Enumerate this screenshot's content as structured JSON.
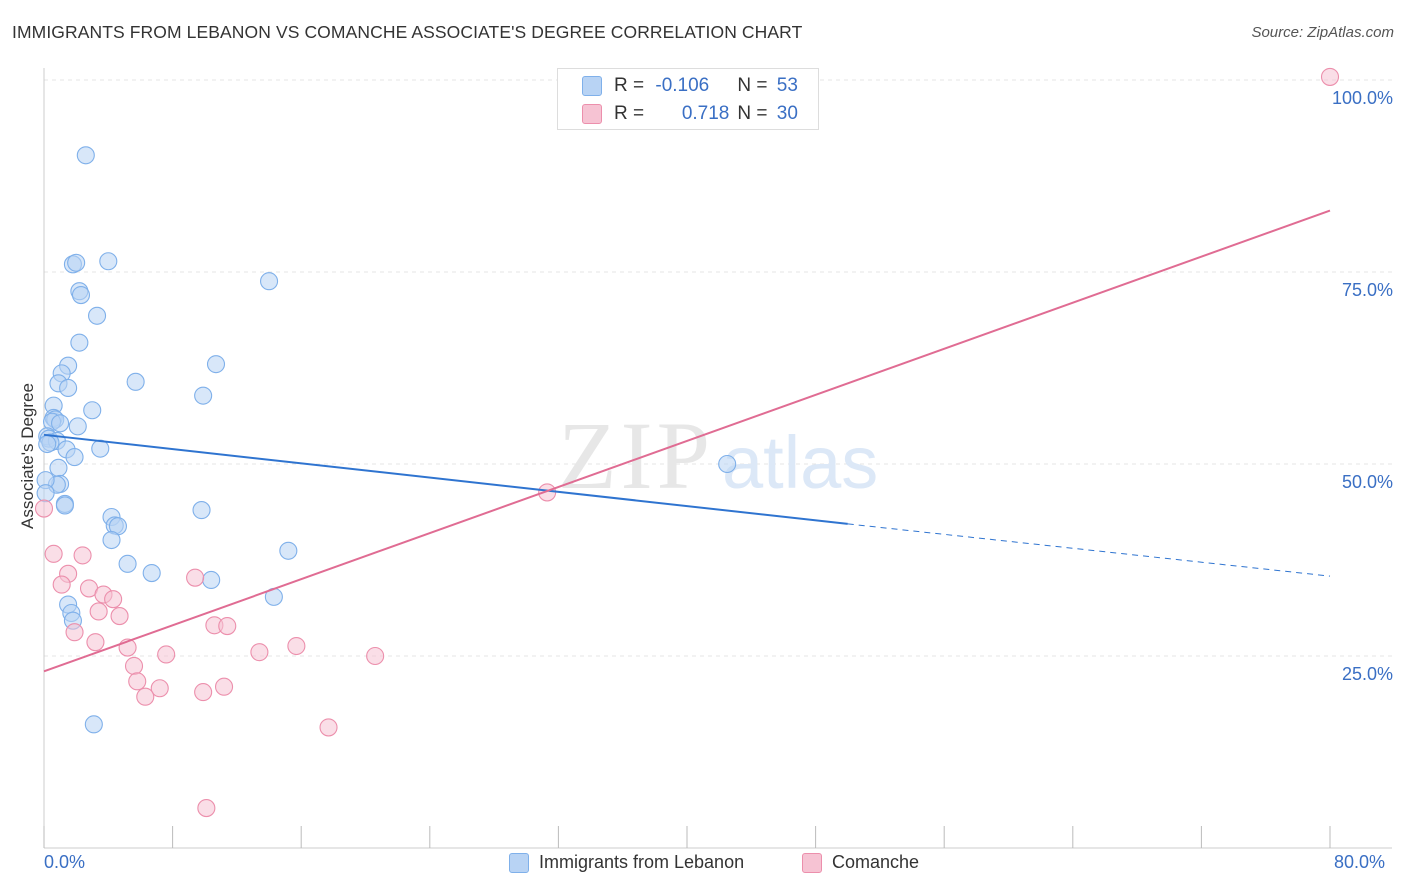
{
  "title": "IMMIGRANTS FROM LEBANON VS COMANCHE ASSOCIATE'S DEGREE CORRELATION CHART",
  "source": "Source: ZipAtlas.com",
  "watermark": {
    "zip": "ZIP",
    "atlas": "atlas"
  },
  "colors": {
    "blue": "#7fb0ea",
    "blue_fill": "#b8d3f4",
    "blue_line": "#2f74d0",
    "pink": "#ec8fac",
    "pink_fill": "#f6c3d3",
    "pink_line": "#e06c93",
    "axis_label": "#3a6fc4",
    "grid": "#e4e4e4"
  },
  "stats": {
    "blue": {
      "r_label": "R = ",
      "r_value": "-0.106",
      "n_label": "N = ",
      "n_value": "53"
    },
    "pink": {
      "r_label": "R = ",
      "r_value": "0.718",
      "n_label": "N = ",
      "n_value": "30"
    }
  },
  "chart_data": {
    "type": "scatter",
    "title": "IMMIGRANTS FROM LEBANON VS COMANCHE ASSOCIATE'S DEGREE CORRELATION CHART",
    "xlabel": "",
    "ylabel": "Associate's Degree",
    "xlim": [
      0,
      80
    ],
    "ylim": [
      0,
      100
    ],
    "x_tick_labels": [
      "0.0%",
      "80.0%"
    ],
    "y_tick_labels": [
      "25.0%",
      "50.0%",
      "75.0%",
      "100.0%"
    ],
    "y_ticks": [
      25,
      50,
      75,
      100
    ],
    "grid": "horizontal dashed",
    "legend_position": "bottom",
    "series": [
      {
        "name": "Immigrants from Lebanon",
        "color": "blue",
        "trend": {
          "x0": 0,
          "y0": 53.8,
          "x1": 50,
          "y1": 42.2,
          "dash_to_x": 80,
          "dash_to_y": 35.4
        },
        "points": [
          [
            2.6,
            90.2
          ],
          [
            1.8,
            76.0
          ],
          [
            2.0,
            76.2
          ],
          [
            4.0,
            76.4
          ],
          [
            14.0,
            73.8
          ],
          [
            2.2,
            72.5
          ],
          [
            2.3,
            72.0
          ],
          [
            3.3,
            69.3
          ],
          [
            2.2,
            65.8
          ],
          [
            10.7,
            63.0
          ],
          [
            1.5,
            62.8
          ],
          [
            1.1,
            61.8
          ],
          [
            0.9,
            60.5
          ],
          [
            5.7,
            60.7
          ],
          [
            1.5,
            59.9
          ],
          [
            9.9,
            58.9
          ],
          [
            0.6,
            57.6
          ],
          [
            3.0,
            57.0
          ],
          [
            0.6,
            56.0
          ],
          [
            0.7,
            55.8
          ],
          [
            0.5,
            55.5
          ],
          [
            1.0,
            55.3
          ],
          [
            2.1,
            54.9
          ],
          [
            0.2,
            53.6
          ],
          [
            0.3,
            53.3
          ],
          [
            0.8,
            53.0
          ],
          [
            0.4,
            52.8
          ],
          [
            0.2,
            52.6
          ],
          [
            3.5,
            52.0
          ],
          [
            1.4,
            51.9
          ],
          [
            1.9,
            50.9
          ],
          [
            0.9,
            49.5
          ],
          [
            42.5,
            50.0
          ],
          [
            1.0,
            47.4
          ],
          [
            0.8,
            47.3
          ],
          [
            1.3,
            44.8
          ],
          [
            1.3,
            44.6
          ],
          [
            9.8,
            44.0
          ],
          [
            4.2,
            43.1
          ],
          [
            4.4,
            42.0
          ],
          [
            4.6,
            41.9
          ],
          [
            4.2,
            40.1
          ],
          [
            15.2,
            38.7
          ],
          [
            5.2,
            37.0
          ],
          [
            6.7,
            35.8
          ],
          [
            10.4,
            34.9
          ],
          [
            14.3,
            32.7
          ],
          [
            1.5,
            31.7
          ],
          [
            1.7,
            30.6
          ],
          [
            1.8,
            29.6
          ],
          [
            3.1,
            16.1
          ],
          [
            0.1,
            47.9
          ],
          [
            0.1,
            46.2
          ]
        ]
      },
      {
        "name": "Comanche",
        "color": "pink",
        "trend": {
          "x0": 0,
          "y0": 23.0,
          "x1": 80,
          "y1": 83.0
        },
        "points": [
          [
            80.0,
            100.4
          ],
          [
            31.3,
            46.3
          ],
          [
            0.0,
            44.2
          ],
          [
            0.6,
            38.3
          ],
          [
            2.4,
            38.1
          ],
          [
            1.5,
            35.7
          ],
          [
            9.4,
            35.2
          ],
          [
            1.1,
            34.3
          ],
          [
            2.8,
            33.8
          ],
          [
            3.7,
            33.0
          ],
          [
            4.3,
            32.4
          ],
          [
            3.4,
            30.8
          ],
          [
            4.7,
            30.2
          ],
          [
            10.6,
            29.0
          ],
          [
            11.4,
            28.9
          ],
          [
            1.9,
            28.1
          ],
          [
            3.2,
            26.8
          ],
          [
            5.2,
            26.1
          ],
          [
            15.7,
            26.3
          ],
          [
            13.4,
            25.5
          ],
          [
            7.6,
            25.2
          ],
          [
            20.6,
            25.0
          ],
          [
            5.6,
            23.7
          ],
          [
            5.8,
            21.7
          ],
          [
            7.2,
            20.8
          ],
          [
            11.2,
            21.0
          ],
          [
            9.9,
            20.3
          ],
          [
            6.3,
            19.7
          ],
          [
            17.7,
            15.7
          ],
          [
            10.1,
            5.2
          ]
        ]
      }
    ]
  }
}
